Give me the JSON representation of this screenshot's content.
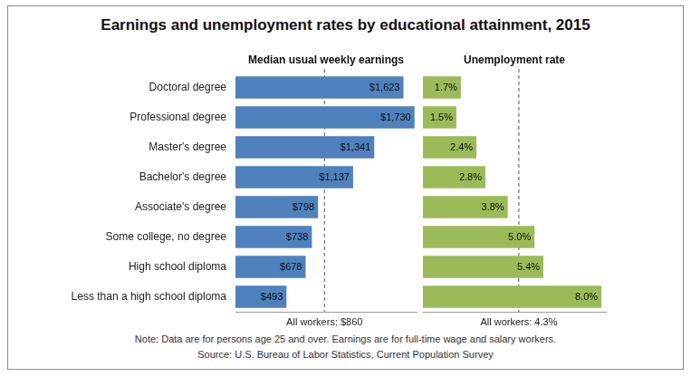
{
  "title": "Earnings and unemployment rates by educational attainment, 2015",
  "chart_data": [
    {
      "type": "bar",
      "orientation": "horizontal",
      "title": "Median usual weekly earnings",
      "categories": [
        "Doctoral degree",
        "Professional degree",
        "Master's degree",
        "Bachelor's degree",
        "Associate's degree",
        "Some college, no degree",
        "High school diploma",
        "Less than a high school diploma"
      ],
      "values": [
        1623,
        1730,
        1341,
        1137,
        798,
        738,
        678,
        493
      ],
      "value_labels": [
        "$1,623",
        "$1,730",
        "$1,341",
        "$1,137",
        "$798",
        "$738",
        "$678",
        "$493"
      ],
      "data_labels": true,
      "color": "#4f81bd",
      "xlim": [
        0,
        1750
      ],
      "xticks": [],
      "grid": false,
      "tick_labels": "y",
      "annotations": [
        {
          "x": 860,
          "text": "All workers: $860",
          "line_style": "dashed"
        }
      ]
    },
    {
      "type": "bar",
      "orientation": "horizontal",
      "title": "Unemployment rate",
      "categories": [
        "Doctoral degree",
        "Professional degree",
        "Master's degree",
        "Bachelor's degree",
        "Associate's degree",
        "Some college, no degree",
        "High school diploma",
        "Less than a high school diploma"
      ],
      "values": [
        1.7,
        1.5,
        2.4,
        2.8,
        3.8,
        5.0,
        5.4,
        8.0
      ],
      "value_labels": [
        "1.7%",
        "1.5%",
        "2.4%",
        "2.8%",
        "3.8%",
        "5.0%",
        "5.4%",
        "8.0%"
      ],
      "data_labels": true,
      "color": "#9bbb59",
      "xlim": [
        0,
        8.2
      ],
      "xticks": [],
      "grid": false,
      "tick_labels": false,
      "annotations": [
        {
          "x": 4.3,
          "text": "All workers: 4.3%",
          "line_style": "dashed"
        }
      ]
    }
  ],
  "note": "Note: Data are for persons age 25 and over. Earnings are for full-time wage and salary workers.",
  "source": "Source: U.S. Bureau of Labor Statistics, Current Population Survey"
}
